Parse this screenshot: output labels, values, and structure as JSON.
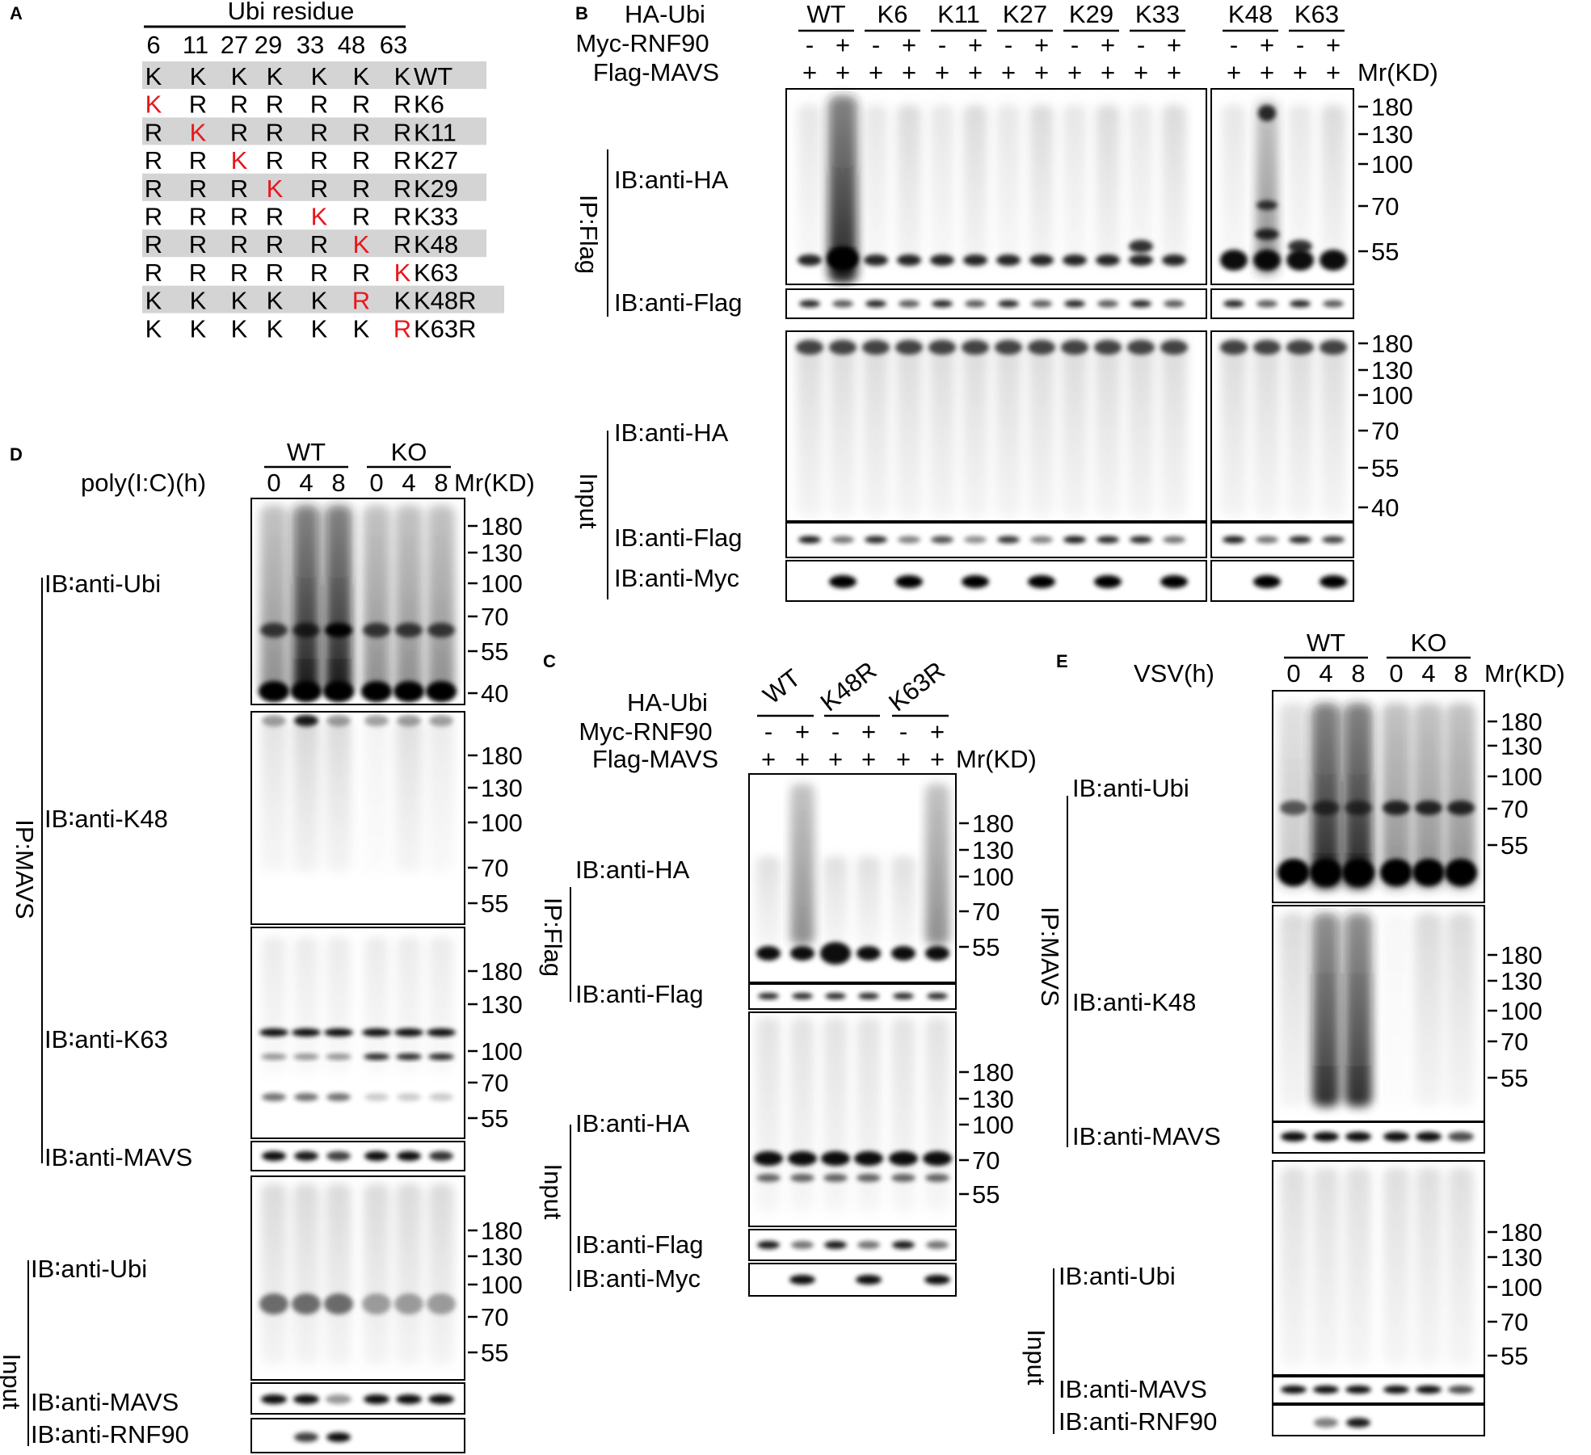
{
  "panel_letters": {
    "a": "A",
    "b": "B",
    "c": "C",
    "d": "D",
    "e": "E"
  },
  "colors": {
    "highlight": "#e8171b",
    "row_shade": "#d4d4d4",
    "ink": "#000000"
  },
  "panel_a": {
    "title": "Ubi residue",
    "residue_positions": [
      "6",
      "11",
      "27",
      "29",
      "33",
      "48",
      "63"
    ],
    "rows": [
      {
        "label": "WT",
        "residues": [
          "K",
          "K",
          "K",
          "K",
          "K",
          "K",
          "K"
        ],
        "red_index": -1,
        "shaded": true
      },
      {
        "label": "K6",
        "residues": [
          "K",
          "R",
          "R",
          "R",
          "R",
          "R",
          "R"
        ],
        "red_index": 0,
        "shaded": false
      },
      {
        "label": "K11",
        "residues": [
          "R",
          "K",
          "R",
          "R",
          "R",
          "R",
          "R"
        ],
        "red_index": 1,
        "shaded": true
      },
      {
        "label": "K27",
        "residues": [
          "R",
          "R",
          "K",
          "R",
          "R",
          "R",
          "R"
        ],
        "red_index": 2,
        "shaded": false
      },
      {
        "label": "K29",
        "residues": [
          "R",
          "R",
          "R",
          "K",
          "R",
          "R",
          "R"
        ],
        "red_index": 3,
        "shaded": true
      },
      {
        "label": "K33",
        "residues": [
          "R",
          "R",
          "R",
          "R",
          "K",
          "R",
          "R"
        ],
        "red_index": 4,
        "shaded": false
      },
      {
        "label": "K48",
        "residues": [
          "R",
          "R",
          "R",
          "R",
          "R",
          "K",
          "R"
        ],
        "red_index": 5,
        "shaded": true
      },
      {
        "label": "K63",
        "residues": [
          "R",
          "R",
          "R",
          "R",
          "R",
          "R",
          "K"
        ],
        "red_index": 6,
        "shaded": false
      },
      {
        "label": "K48R",
        "residues": [
          "K",
          "K",
          "K",
          "K",
          "K",
          "R",
          "K"
        ],
        "red_index": 5,
        "shaded": true
      },
      {
        "label": "K63R",
        "residues": [
          "K",
          "K",
          "K",
          "K",
          "K",
          "K",
          "R"
        ],
        "red_index": 6,
        "shaded": false
      }
    ]
  },
  "panel_b": {
    "header_labels": [
      "HA-Ubi",
      "Myc-RNF90",
      "Flag-MAVS"
    ],
    "groups": [
      "WT",
      "K6",
      "K11",
      "K27",
      "K29",
      "K33",
      "K48",
      "K63"
    ],
    "myc_row": [
      "-",
      "+",
      "-",
      "+",
      "-",
      "+",
      "-",
      "+",
      "-",
      "+",
      "-",
      "+",
      "-",
      "+",
      "-",
      "+"
    ],
    "flag_row": [
      "+",
      "+",
      "+",
      "+",
      "+",
      "+",
      "+",
      "+",
      "+",
      "+",
      "+",
      "+",
      "+",
      "+",
      "+",
      "+"
    ],
    "mr_label": "Mr(KD)",
    "ip_label": "IP:Flag",
    "input_label": "Input",
    "blots": {
      "ip_ha": "IB:anti-HA",
      "ip_flag": "IB:anti-Flag",
      "in_ha": "IB:anti-HA",
      "in_flag": "IB:anti-Flag",
      "in_myc": "IB:anti-Myc"
    },
    "markers_ip": [
      "180",
      "130",
      "100",
      "70",
      "55"
    ],
    "markers_input": [
      "180",
      "130",
      "100",
      "70",
      "55",
      "40"
    ]
  },
  "panel_c": {
    "header_labels": [
      "HA-Ubi",
      "Myc-RNF90",
      "Flag-MAVS"
    ],
    "groups": [
      "WT",
      "K48R",
      "K63R"
    ],
    "myc_row": [
      "-",
      "+",
      "-",
      "+",
      "-",
      "+"
    ],
    "flag_row": [
      "+",
      "+",
      "+",
      "+",
      "+",
      "+"
    ],
    "mr_label": "Mr(KD)",
    "ip_label": "IP:Flag",
    "input_label": "Input",
    "blots": {
      "ip_ha": "IB:anti-HA",
      "ip_flag": "IB:anti-Flag",
      "in_ha": "IB:anti-HA",
      "in_flag": "IB:anti-Flag",
      "in_myc": "IB:anti-Myc"
    },
    "markers_ip": [
      "180",
      "130",
      "100",
      "70",
      "55"
    ],
    "markers_input": [
      "180",
      "130",
      "100",
      "70",
      "55"
    ]
  },
  "panel_d": {
    "treatment": "poly(I:C)(h)",
    "groups": [
      "WT",
      "KO"
    ],
    "timepoints": [
      "0",
      "4",
      "8",
      "0",
      "4",
      "8"
    ],
    "mr_label": "Mr(KD)",
    "ip_label": "IP:MAVS",
    "input_label": "Input",
    "blots": {
      "ip_ubi": "IB∶anti-Ubi",
      "ip_k48": "IB∶anti-K48",
      "ip_k63": "IB∶anti-K63",
      "ip_mavs": "IB∶anti-MAVS",
      "in_ubi": "IB∶anti-Ubi",
      "in_mavs": "IB∶anti-MAVS",
      "in_rnf90": "IB∶anti-RNF90"
    },
    "markers_ubi": [
      "180",
      "130",
      "100",
      "70",
      "55",
      "40"
    ],
    "markers_k48": [
      "180",
      "130",
      "100",
      "70",
      "55"
    ],
    "markers_k63": [
      "180",
      "130",
      "100",
      "70",
      "55"
    ],
    "markers_input": [
      "180",
      "130",
      "100",
      "70",
      "55"
    ]
  },
  "panel_e": {
    "treatment": "VSV(h)",
    "groups": [
      "WT",
      "KO"
    ],
    "timepoints": [
      "0",
      "4",
      "8",
      "0",
      "4",
      "8"
    ],
    "mr_label": "Mr(KD)",
    "ip_label": "IP:MAVS",
    "input_label": "Input",
    "blots": {
      "ip_ubi": "IB:anti-Ubi",
      "ip_k48": "IB:anti-K48",
      "ip_mavs": "IB:anti-MAVS",
      "in_ubi": "IB:anti-Ubi",
      "in_mavs": "IB:anti-MAVS",
      "in_rnf90": "IB:anti-RNF90"
    },
    "markers_ubi": [
      "180",
      "130",
      "100",
      "70",
      "55"
    ],
    "markers_k48": [
      "180",
      "130",
      "100",
      "70",
      "55"
    ],
    "markers_input": [
      "180",
      "130",
      "100",
      "70",
      "55"
    ]
  }
}
